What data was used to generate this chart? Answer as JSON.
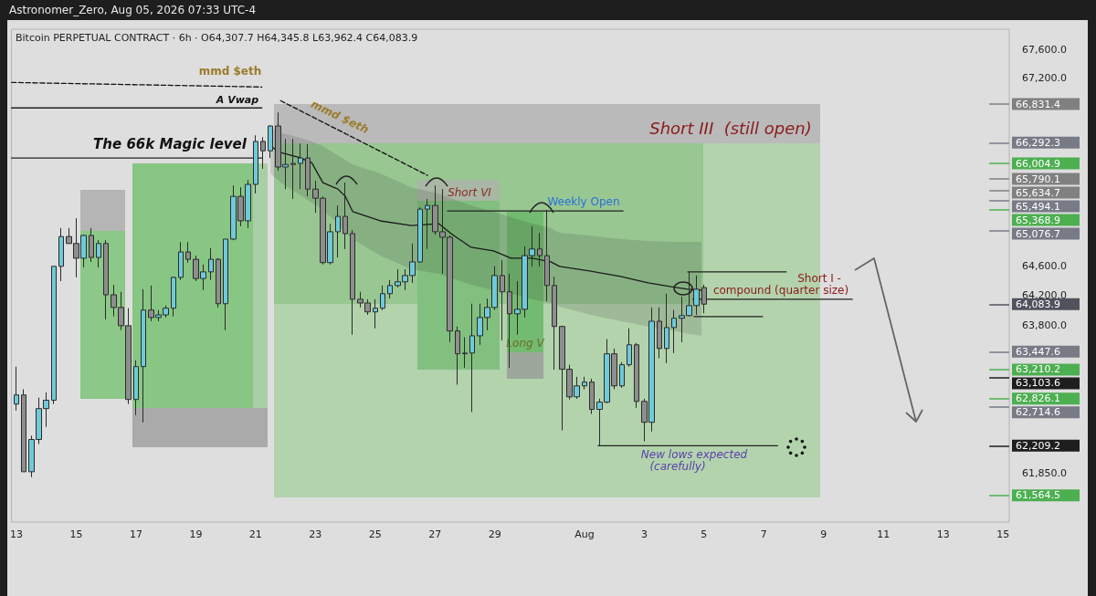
{
  "chart_data": {
    "type": "candlestick",
    "title": "Astronomer_Zero, Aug 05, 2026 07:33 UTC-4",
    "subtitle": "Bitcoin PERPETUAL CONTRACT · 6h · O64,307.7 H64,345.8 L63,962.4 C64,083.9",
    "log": "y",
    "grid": false,
    "xlim": [
      "2026-07-12T20:00",
      "2026-08-15T05:00"
    ],
    "xticks": [
      {
        "value": "2026-07-13T00:00",
        "label": "13"
      },
      {
        "value": "2026-07-15T00:00",
        "label": "15"
      },
      {
        "value": "2026-07-17T00:00",
        "label": "17"
      },
      {
        "value": "2026-07-19T00:00",
        "label": "19"
      },
      {
        "value": "2026-07-21T00:00",
        "label": "21"
      },
      {
        "value": "2026-07-23T00:00",
        "label": "23"
      },
      {
        "value": "2026-07-25T00:00",
        "label": "25"
      },
      {
        "value": "2026-07-27T00:00",
        "label": "27"
      },
      {
        "value": "2026-07-29T00:00",
        "label": "29"
      },
      {
        "value": "2026-08-01T00:00",
        "label": "Aug"
      },
      {
        "value": "2026-08-03T00:00",
        "label": "3"
      },
      {
        "value": "2026-08-05T00:00",
        "label": "5"
      },
      {
        "value": "2026-08-07T00:00",
        "label": "7"
      },
      {
        "value": "2026-08-09T00:00",
        "label": "9"
      },
      {
        "value": "2026-08-11T00:00",
        "label": "11"
      },
      {
        "value": "2026-08-13T00:00",
        "label": "13"
      },
      {
        "value": "2026-08-15T00:00",
        "label": "15"
      }
    ],
    "ylim": [
      61220,
      67890
    ],
    "yticks": [
      {
        "value": 67600,
        "label": "67,600.0"
      },
      {
        "value": 67200,
        "label": "67,200.0"
      },
      {
        "value": 64600,
        "label": "64,600.0"
      },
      {
        "value": 64200,
        "label": "64,200.0"
      },
      {
        "value": 63800,
        "label": "63,800.0"
      },
      {
        "value": 61850,
        "label": "61,850.0"
      }
    ],
    "x": [
      "2026-07-13T00:00",
      "2026-07-13T06:00",
      "2026-07-13T12:00",
      "2026-07-13T18:00",
      "2026-07-14T00:00",
      "2026-07-14T06:00",
      "2026-07-14T12:00",
      "2026-07-14T18:00",
      "2026-07-15T00:00",
      "2026-07-15T06:00",
      "2026-07-15T12:00",
      "2026-07-15T18:00",
      "2026-07-16T00:00",
      "2026-07-16T06:00",
      "2026-07-16T12:00",
      "2026-07-16T18:00",
      "2026-07-17T00:00",
      "2026-07-17T06:00",
      "2026-07-17T12:00",
      "2026-07-17T18:00",
      "2026-07-18T00:00",
      "2026-07-18T06:00",
      "2026-07-18T12:00",
      "2026-07-18T18:00",
      "2026-07-19T00:00",
      "2026-07-19T06:00",
      "2026-07-19T12:00",
      "2026-07-19T18:00",
      "2026-07-20T00:00",
      "2026-07-20T06:00",
      "2026-07-20T12:00",
      "2026-07-20T18:00",
      "2026-07-21T00:00",
      "2026-07-21T06:00",
      "2026-07-21T12:00",
      "2026-07-21T18:00",
      "2026-07-22T00:00",
      "2026-07-22T06:00",
      "2026-07-22T12:00",
      "2026-07-22T18:00",
      "2026-07-23T00:00",
      "2026-07-23T06:00",
      "2026-07-23T12:00",
      "2026-07-23T18:00",
      "2026-07-24T00:00",
      "2026-07-24T06:00",
      "2026-07-24T12:00",
      "2026-07-24T18:00",
      "2026-07-25T00:00",
      "2026-07-25T06:00",
      "2026-07-25T12:00",
      "2026-07-25T18:00",
      "2026-07-26T00:00",
      "2026-07-26T06:00",
      "2026-07-26T12:00",
      "2026-07-26T18:00",
      "2026-07-27T00:00",
      "2026-07-27T06:00",
      "2026-07-27T12:00",
      "2026-07-27T18:00",
      "2026-07-28T00:00",
      "2026-07-28T06:00",
      "2026-07-28T12:00",
      "2026-07-28T18:00",
      "2026-07-29T00:00",
      "2026-07-29T06:00",
      "2026-07-29T12:00",
      "2026-07-29T18:00",
      "2026-07-30T00:00",
      "2026-07-30T06:00",
      "2026-07-30T12:00",
      "2026-07-30T18:00",
      "2026-07-31T00:00",
      "2026-07-31T06:00",
      "2026-07-31T12:00",
      "2026-07-31T18:00",
      "2026-08-01T00:00",
      "2026-08-01T06:00",
      "2026-08-01T12:00",
      "2026-08-01T18:00",
      "2026-08-02T00:00",
      "2026-08-02T06:00",
      "2026-08-02T12:00",
      "2026-08-02T18:00",
      "2026-08-03T00:00",
      "2026-08-03T06:00",
      "2026-08-03T12:00",
      "2026-08-03T18:00",
      "2026-08-04T00:00",
      "2026-08-04T06:00",
      "2026-08-04T12:00",
      "2026-08-04T18:00",
      "2026-08-05T00:00"
    ],
    "ohlc": [
      [
        62755,
        63250,
        62670,
        62875
      ],
      [
        62875,
        62950,
        61870,
        61870
      ],
      [
        61870,
        62340,
        61800,
        62290
      ],
      [
        62290,
        62840,
        62230,
        62695
      ],
      [
        62695,
        62910,
        62455,
        62805
      ],
      [
        62805,
        64595,
        62755,
        64595
      ],
      [
        64595,
        65115,
        64395,
        65000
      ],
      [
        65000,
        65115,
        64905,
        64905
      ],
      [
        64905,
        65250,
        64445,
        64705
      ],
      [
        64705,
        65025,
        64580,
        65015
      ],
      [
        65015,
        65115,
        64655,
        64715
      ],
      [
        64715,
        64950,
        64580,
        64905
      ],
      [
        64905,
        64950,
        63880,
        64210
      ],
      [
        64210,
        64345,
        63920,
        64040
      ],
      [
        64040,
        64250,
        63735,
        63795
      ],
      [
        63795,
        64030,
        62755,
        62815
      ],
      [
        62815,
        63335,
        62610,
        63250
      ],
      [
        63250,
        64285,
        62515,
        64005
      ],
      [
        64005,
        64335,
        63855,
        63905
      ],
      [
        63905,
        64005,
        63855,
        63940
      ],
      [
        63940,
        64065,
        63905,
        64030
      ],
      [
        64030,
        64455,
        63920,
        64445
      ],
      [
        64445,
        64925,
        64410,
        64790
      ],
      [
        64790,
        64925,
        64645,
        64690
      ],
      [
        64690,
        64740,
        64395,
        64430
      ],
      [
        64430,
        64620,
        64275,
        64520
      ],
      [
        64520,
        64840,
        64410,
        64690
      ],
      [
        64690,
        64705,
        64040,
        64090
      ],
      [
        64090,
        64965,
        63735,
        64965
      ],
      [
        64965,
        65700,
        64950,
        65550
      ],
      [
        65550,
        65675,
        65140,
        65215
      ],
      [
        65215,
        65775,
        65115,
        65715
      ],
      [
        65715,
        66395,
        65590,
        66310
      ],
      [
        66310,
        66370,
        65930,
        66180
      ],
      [
        66180,
        66535,
        66080,
        66525
      ],
      [
        66525,
        66715,
        65905,
        65955
      ],
      [
        65955,
        66345,
        65650,
        65990
      ],
      [
        65990,
        66345,
        65515,
        66005
      ],
      [
        66005,
        66280,
        65650,
        66080
      ],
      [
        66080,
        66270,
        65550,
        65650
      ],
      [
        65650,
        65765,
        65325,
        65525
      ],
      [
        65525,
        65550,
        64620,
        64645
      ],
      [
        64645,
        65175,
        64620,
        65065
      ],
      [
        65065,
        65425,
        64715,
        65275
      ],
      [
        65275,
        65740,
        64830,
        65040
      ],
      [
        65040,
        65090,
        63675,
        64150
      ],
      [
        64150,
        64250,
        64040,
        64100
      ],
      [
        64100,
        64150,
        63940,
        63980
      ],
      [
        63980,
        64150,
        63760,
        64030
      ],
      [
        64030,
        64335,
        64005,
        64225
      ],
      [
        64225,
        64410,
        64160,
        64335
      ],
      [
        64335,
        64555,
        64310,
        64385
      ],
      [
        64385,
        64555,
        64275,
        64470
      ],
      [
        64470,
        64905,
        64370,
        64655
      ],
      [
        64655,
        65400,
        64645,
        65375
      ],
      [
        65375,
        65515,
        64830,
        65425
      ],
      [
        65425,
        65700,
        65025,
        65065
      ],
      [
        65065,
        65650,
        64495,
        64990
      ],
      [
        64990,
        65015,
        63575,
        63725
      ],
      [
        63725,
        63785,
        63010,
        63420
      ],
      [
        63420,
        63640,
        63235,
        63430
      ],
      [
        63430,
        64090,
        62650,
        63660
      ],
      [
        63660,
        64090,
        63540,
        63905
      ],
      [
        63905,
        64160,
        63735,
        64040
      ],
      [
        64040,
        64595,
        64005,
        64470
      ],
      [
        64470,
        64680,
        63600,
        64250
      ],
      [
        64250,
        64495,
        63235,
        63955
      ],
      [
        63955,
        64395,
        63675,
        64015
      ],
      [
        64015,
        64865,
        63905,
        64740
      ],
      [
        64740,
        65140,
        64595,
        64830
      ],
      [
        64830,
        65050,
        64595,
        64740
      ],
      [
        64740,
        65365,
        64125,
        64335
      ],
      [
        64335,
        64455,
        63210,
        63785
      ],
      [
        63785,
        63795,
        62410,
        63215
      ],
      [
        63215,
        63275,
        62815,
        62850
      ],
      [
        62850,
        63115,
        62825,
        62995
      ],
      [
        62995,
        63115,
        62950,
        63045
      ],
      [
        63045,
        63090,
        62625,
        62685
      ],
      [
        62685,
        62825,
        62210,
        62780
      ],
      [
        62780,
        63615,
        62765,
        63420
      ],
      [
        63420,
        63490,
        62950,
        62995
      ],
      [
        62995,
        63310,
        62970,
        63275
      ],
      [
        63275,
        63760,
        63250,
        63540
      ],
      [
        63540,
        63565,
        62705,
        62790
      ],
      [
        62790,
        62825,
        62265,
        62515
      ],
      [
        62515,
        64040,
        62395,
        63855
      ],
      [
        63855,
        64040,
        63360,
        63490
      ],
      [
        63490,
        64225,
        63295,
        63770
      ],
      [
        63770,
        64005,
        63430,
        63895
      ],
      [
        63895,
        64185,
        63575,
        63930
      ],
      [
        63930,
        64520,
        63920,
        64065
      ],
      [
        64065,
        64470,
        63940,
        64285
      ],
      [
        64307.7,
        64345.8,
        63962.4,
        64083.9
      ]
    ],
    "colors": [
      "#6fcad9",
      "#8e8e8e",
      "#6fcad9",
      "#6fcad9",
      "#6fcad9",
      "#6fcad9",
      "#6fcad9",
      "#8e8e8e",
      "#8e8e8e",
      "#6fcad9",
      "#8e8e8e",
      "#6fcad9",
      "#8e8e8e",
      "#8e8e8e",
      "#8e8e8e",
      "#8e8e8e",
      "#6fcad9",
      "#6fcad9",
      "#8e8e8e",
      "#6fcad9",
      "#6fcad9",
      "#6fcad9",
      "#6fcad9",
      "#8e8e8e",
      "#8e8e8e",
      "#6fcad9",
      "#6fcad9",
      "#8e8e8e",
      "#6fcad9",
      "#6fcad9",
      "#8e8e8e",
      "#6fcad9",
      "#6fcad9",
      "#8e8e8e",
      "#6fcad9",
      "#8e8e8e",
      "#6fcad9",
      "#6fcad9",
      "#6fcad9",
      "#8e8e8e",
      "#8e8e8e",
      "#8e8e8e",
      "#6fcad9",
      "#6fcad9",
      "#8e8e8e",
      "#8e8e8e",
      "#8e8e8e",
      "#8e8e8e",
      "#6fcad9",
      "#6fcad9",
      "#6fcad9",
      "#6fcad9",
      "#6fcad9",
      "#6fcad9",
      "#6fcad9",
      "#6fcad9",
      "#8e8e8e",
      "#8e8e8e",
      "#8e8e8e",
      "#8e8e8e",
      "#6fcad9",
      "#6fcad9",
      "#6fcad9",
      "#6fcad9",
      "#6fcad9",
      "#8e8e8e",
      "#8e8e8e",
      "#6fcad9",
      "#6fcad9",
      "#6fcad9",
      "#8e8e8e",
      "#8e8e8e",
      "#8e8e8e",
      "#8e8e8e",
      "#8e8e8e",
      "#6fcad9",
      "#6fcad9",
      "#8e8e8e",
      "#6fcad9",
      "#6fcad9",
      "#8e8e8e",
      "#6fcad9",
      "#6fcad9",
      "#8e8e8e",
      "#8e8e8e",
      "#6fcad9",
      "#8e8e8e",
      "#6fcad9",
      "#6fcad9",
      "#6fcad9",
      "#6fcad9",
      "#6fcad9",
      "#8e8e8e"
    ],
    "series": [
      {
        "type": "line",
        "color": "#1a1a1a",
        "x": [
          "2026-07-21T12:00",
          "2026-07-21T20:00",
          "2026-07-22T10:00",
          "2026-07-22T21:00",
          "2026-07-23T06:00",
          "2026-07-23T18:00",
          "2026-07-24T00:00",
          "2026-07-24T06:00",
          "2026-07-25T04:00",
          "2026-07-26T05:00",
          "2026-07-27T03:00",
          "2026-07-27T14:00",
          "2026-07-28T05:00",
          "2026-07-28T23:00",
          "2026-07-29T13:00",
          "2026-07-30T06:00",
          "2026-07-30T21:00",
          "2026-07-31T04:00",
          "2026-08-01T04:00",
          "2026-08-02T05:00",
          "2026-08-03T03:00",
          "2026-08-04T01:00",
          "2026-08-04T11:00",
          "2026-08-04T22:00"
        ],
        "values": [
          66244,
          66155,
          66092,
          66016,
          65739,
          65651,
          65551,
          65339,
          65214,
          65151,
          65176,
          65026,
          64853,
          64804,
          64705,
          64705,
          64655,
          64593,
          64531,
          64457,
          64371,
          64310,
          64285,
          64273
        ],
        "upper": [
          66498,
          66434,
          66371,
          66308,
          66244,
          66118,
          66054,
          65991,
          65865,
          65676,
          65588,
          65513,
          65426,
          65339,
          65264,
          65176,
          65114,
          65051,
          65014,
          64964,
          64940,
          64927,
          64927,
          64927
        ],
        "lower": [
          65865,
          65739,
          65588,
          65463,
          65364,
          65176,
          65051,
          64964,
          64742,
          64556,
          64494,
          64432,
          64346,
          64273,
          64224,
          64150,
          64101,
          64052,
          63942,
          63857,
          63783,
          63723,
          63686,
          63662
        ]
      },
      {
        "type": "line",
        "color": "#111111",
        "line_style": "dashed",
        "x": [
          "2026-07-12T20:00",
          "2026-07-21T05:00"
        ],
        "values": [
          67136,
          67072
        ]
      },
      {
        "type": "line",
        "color": "#111111",
        "line_style": "dashed",
        "x": [
          "2026-07-21T20:00",
          "2026-07-26T18:00"
        ],
        "values": [
          66880,
          65840
        ]
      },
      {
        "type": "line",
        "color": "#222222",
        "x": [
          "2026-07-12T20:00",
          "2026-07-21T05:00"
        ],
        "values": [
          66778,
          66778
        ]
      },
      {
        "type": "line",
        "color": "#222222",
        "x": [
          "2026-07-12T20:00",
          "2026-07-21T05:00"
        ],
        "values": [
          66080,
          66080
        ]
      },
      {
        "type": "line",
        "color": "#222222",
        "x": [
          "2026-07-27T10:00",
          "2026-08-02T07:00"
        ],
        "values": [
          65351,
          65351
        ]
      },
      {
        "type": "line",
        "color": "#222222",
        "x": [
          "2026-08-04T11:00",
          "2026-08-07T18:00"
        ],
        "values": [
          64519,
          64519
        ]
      },
      {
        "type": "line",
        "color": "#222222",
        "x": [
          "2026-08-04T15:00",
          "2026-08-09T23:00"
        ],
        "values": [
          64150,
          64150
        ]
      },
      {
        "type": "line",
        "color": "#222222",
        "x": [
          "2026-08-04T16:00",
          "2026-08-06T23:00"
        ],
        "values": [
          63918,
          63918
        ]
      },
      {
        "type": "line",
        "color": "#222222",
        "x": [
          "2026-08-01T11:00",
          "2026-08-07T11:00"
        ],
        "values": [
          62209.2,
          62209.2
        ]
      }
    ],
    "ref_lines": [
      {
        "axis": "y",
        "value": 66831.4,
        "label": "66,831.4",
        "color": "#808080"
      },
      {
        "axis": "y",
        "value": 66292.3,
        "label": "66,292.3",
        "color": "#787b86"
      },
      {
        "axis": "y",
        "value": 66004.9,
        "label": "66,004.9",
        "color": "#4caf50"
      },
      {
        "axis": "y",
        "value": 65790.1,
        "label": "65,790.1",
        "color": "#808080"
      },
      {
        "axis": "y",
        "value": 65634.7,
        "label": "65,634.7",
        "color": "#808080"
      },
      {
        "axis": "y",
        "value": 65494.1,
        "label": "65,494.1",
        "color": "#787b86"
      },
      {
        "axis": "y",
        "value": 65368.9,
        "label": "65,368.9",
        "color": "#4caf50"
      },
      {
        "axis": "y",
        "value": 65076.7,
        "label": "65,076.7",
        "color": "#787b86"
      },
      {
        "axis": "y",
        "value": 64083.9,
        "label": "64,083.9",
        "color": "#50535e"
      },
      {
        "axis": "y",
        "value": 63447.6,
        "label": "63,447.6",
        "color": "#787b86"
      },
      {
        "axis": "y",
        "value": 63210.2,
        "label": "63,210.2",
        "color": "#4caf50"
      },
      {
        "axis": "y",
        "value": 63103.6,
        "label": "63,103.6",
        "color": "#1e1e1e"
      },
      {
        "axis": "y",
        "value": 62826.1,
        "label": "62,826.1",
        "color": "#4caf50"
      },
      {
        "axis": "y",
        "value": 62714.6,
        "label": "62,714.6",
        "color": "#787b86"
      },
      {
        "axis": "y",
        "value": 62209.2,
        "label": "62,209.2",
        "color": "#1e1e1e"
      },
      {
        "axis": "y",
        "value": 61564.5,
        "label": "61,564.5",
        "color": "#4caf50"
      }
    ],
    "annotations": [
      "mmd $eth",
      "A Vwap",
      "The 66k Magic level",
      "mmd $eth",
      "Short III  (still open)",
      "Short VI",
      "Weekly Open",
      "Long V",
      "Short I -",
      "compound (quarter size)",
      "New lows expected",
      "(carefully)"
    ]
  }
}
